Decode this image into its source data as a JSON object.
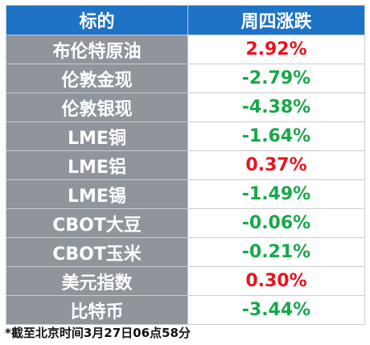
{
  "header": {
    "col1": "标的",
    "col2": "周四涨跌"
  },
  "rows": [
    {
      "name": "布伦特原油",
      "change": "2.92%",
      "direction": "up"
    },
    {
      "name": "伦敦金现",
      "change": "-2.79%",
      "direction": "down"
    },
    {
      "name": "伦敦银现",
      "change": "-4.38%",
      "direction": "down"
    },
    {
      "name": "LME铜",
      "change": "-1.64%",
      "direction": "down"
    },
    {
      "name": "LME铝",
      "change": "0.37%",
      "direction": "up"
    },
    {
      "name": "LME锡",
      "change": "-1.49%",
      "direction": "down"
    },
    {
      "name": "CBOT大豆",
      "change": "-0.06%",
      "direction": "down"
    },
    {
      "name": "CBOT玉米",
      "change": "-0.21%",
      "direction": "down"
    },
    {
      "name": "美元指数",
      "change": "0.30%",
      "direction": "up"
    },
    {
      "name": "比特币",
      "change": "-3.44%",
      "direction": "down"
    }
  ],
  "footnote": "*截至北京时间3月27日06点58分",
  "colors": {
    "header_bg": "#1f73c6",
    "name_bg": "#8f959b",
    "up": "#e8141d",
    "down": "#18a84a"
  }
}
